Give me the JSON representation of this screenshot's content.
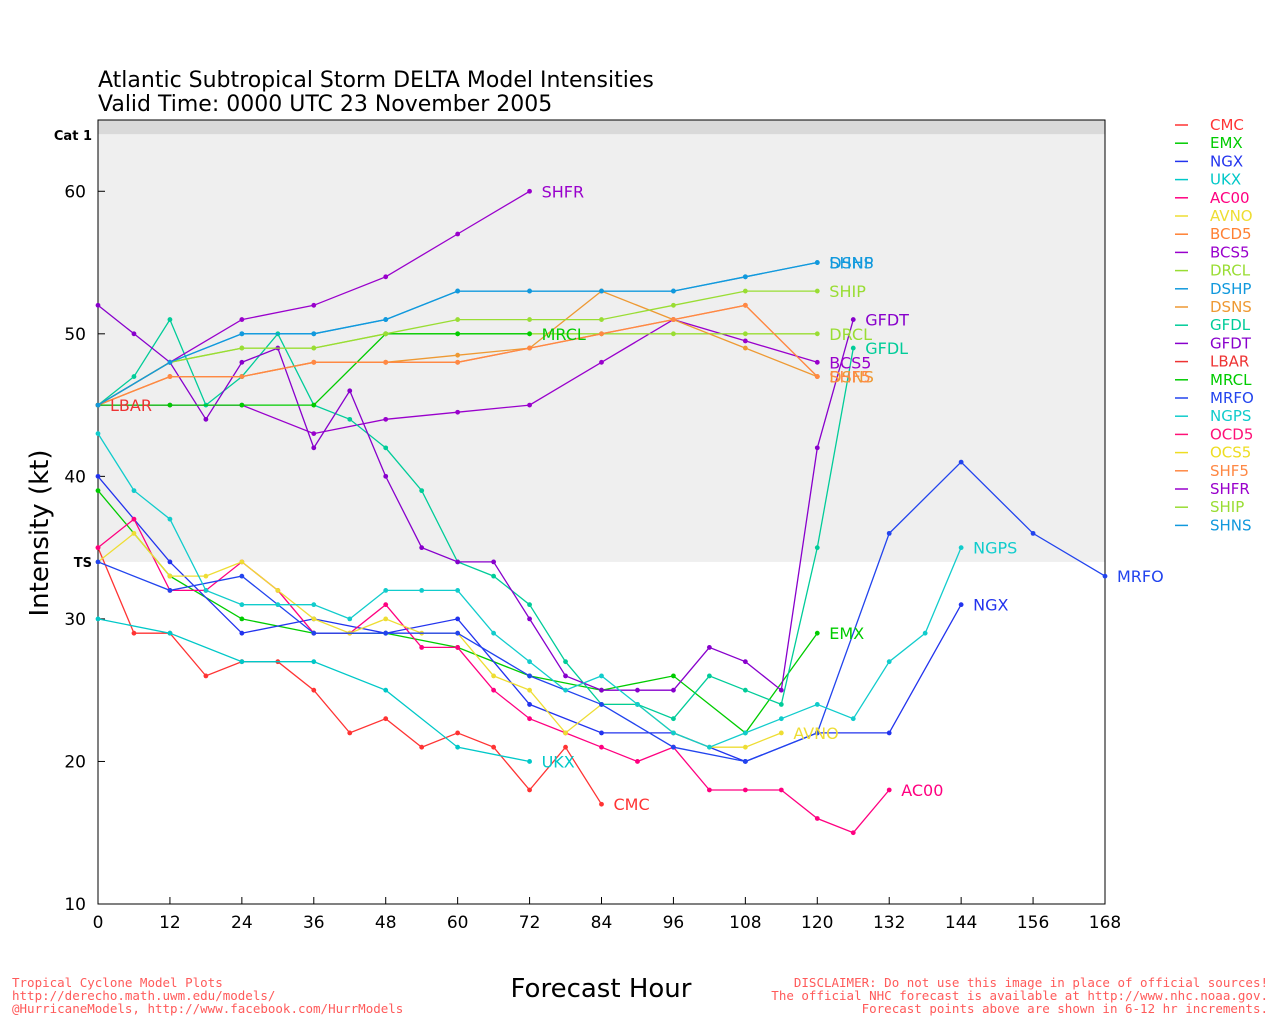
{
  "chart_data": {
    "type": "line",
    "title": "Atlantic Subtropical Storm DELTA Model Intensities",
    "subtitle": "Valid Time: 0000 UTC 23 November 2005",
    "xlabel": "Forecast Hour",
    "ylabel": "Intensity (kt)",
    "xlim": [
      0,
      168
    ],
    "ylim": [
      10,
      65
    ],
    "xticks": [
      "0",
      "12",
      "24",
      "36",
      "48",
      "60",
      "72",
      "84",
      "96",
      "108",
      "120",
      "132",
      "144",
      "156",
      "168"
    ],
    "yticks": [
      "10",
      "20",
      "30",
      "40",
      "50",
      "60"
    ],
    "grid": false,
    "legend_position": "right",
    "bands": [
      {
        "label": "TS",
        "from": 34,
        "to": 64,
        "color": "#efefef"
      },
      {
        "label": "Cat 1",
        "from": 64,
        "to": 65,
        "color": "#d9d9d9"
      }
    ],
    "series": [
      {
        "name": "CMC",
        "color": "#ff3333",
        "end_label": "CMC",
        "points": [
          [
            0,
            35
          ],
          [
            6,
            29
          ],
          [
            12,
            29
          ],
          [
            18,
            26
          ],
          [
            24,
            27
          ],
          [
            30,
            27
          ],
          [
            36,
            25
          ],
          [
            42,
            22
          ],
          [
            48,
            23
          ],
          [
            54,
            21
          ],
          [
            60,
            22
          ],
          [
            66,
            21
          ],
          [
            72,
            18
          ],
          [
            78,
            21
          ],
          [
            84,
            17
          ]
        ]
      },
      {
        "name": "EMX",
        "color": "#00cc00",
        "end_label": "EMX",
        "points": [
          [
            0,
            39
          ],
          [
            12,
            33
          ],
          [
            24,
            30
          ],
          [
            36,
            29
          ],
          [
            48,
            29
          ],
          [
            60,
            28
          ],
          [
            72,
            26
          ],
          [
            84,
            25
          ],
          [
            96,
            26
          ],
          [
            108,
            22
          ],
          [
            120,
            29
          ]
        ]
      },
      {
        "name": "NGX",
        "color": "#2233ee",
        "end_label": "NGX",
        "points": [
          [
            0,
            40
          ],
          [
            12,
            34
          ],
          [
            24,
            29
          ],
          [
            36,
            30
          ],
          [
            48,
            29
          ],
          [
            60,
            30
          ],
          [
            72,
            24
          ],
          [
            84,
            22
          ],
          [
            96,
            22
          ],
          [
            108,
            20
          ],
          [
            120,
            22
          ],
          [
            132,
            22
          ],
          [
            144,
            31
          ]
        ]
      },
      {
        "name": "UKX",
        "color": "#00c8c8",
        "end_label": "UKX",
        "points": [
          [
            0,
            30
          ],
          [
            12,
            29
          ],
          [
            24,
            27
          ],
          [
            36,
            27
          ],
          [
            48,
            25
          ],
          [
            60,
            21
          ],
          [
            72,
            20
          ]
        ]
      },
      {
        "name": "AC00",
        "color": "#ff0080",
        "end_label": "AC00",
        "points": [
          [
            0,
            35
          ],
          [
            6,
            37
          ],
          [
            12,
            32
          ],
          [
            18,
            32
          ],
          [
            24,
            34
          ],
          [
            30,
            32
          ],
          [
            36,
            29
          ],
          [
            42,
            29
          ],
          [
            48,
            31
          ],
          [
            54,
            28
          ],
          [
            60,
            28
          ],
          [
            66,
            25
          ],
          [
            72,
            23
          ],
          [
            78,
            22
          ],
          [
            84,
            21
          ],
          [
            90,
            20
          ],
          [
            96,
            21
          ],
          [
            102,
            18
          ],
          [
            108,
            18
          ],
          [
            114,
            18
          ],
          [
            120,
            16
          ],
          [
            126,
            15
          ],
          [
            132,
            18
          ]
        ]
      },
      {
        "name": "AVNO",
        "color": "#eedd33",
        "end_label": "AVNO",
        "points": [
          [
            0,
            34
          ],
          [
            6,
            36
          ],
          [
            12,
            33
          ],
          [
            18,
            33
          ],
          [
            24,
            34
          ],
          [
            30,
            32
          ],
          [
            36,
            30
          ],
          [
            42,
            29
          ],
          [
            48,
            30
          ],
          [
            54,
            29
          ],
          [
            60,
            29
          ],
          [
            66,
            26
          ],
          [
            72,
            25
          ],
          [
            78,
            22
          ],
          [
            84,
            24
          ],
          [
            90,
            24
          ],
          [
            96,
            22
          ],
          [
            102,
            21
          ],
          [
            108,
            21
          ],
          [
            114,
            22
          ]
        ]
      },
      {
        "name": "BCD5",
        "color": "#ff8033",
        "end_label": "",
        "points": [
          [
            0,
            45
          ],
          [
            12,
            47
          ],
          [
            24,
            47
          ],
          [
            36,
            48
          ],
          [
            48,
            48
          ],
          [
            60,
            48
          ],
          [
            72,
            49
          ],
          [
            84,
            50
          ],
          [
            96,
            51
          ],
          [
            108,
            52
          ],
          [
            120,
            47
          ]
        ]
      },
      {
        "name": "BCS5",
        "color": "#9900cc",
        "end_label": "BCS5",
        "points": [
          [
            0,
            45
          ],
          [
            12,
            45
          ],
          [
            24,
            45
          ],
          [
            36,
            43
          ],
          [
            48,
            44
          ],
          [
            60,
            44.5
          ],
          [
            72,
            45
          ],
          [
            84,
            48
          ],
          [
            96,
            51
          ],
          [
            108,
            49.5
          ],
          [
            120,
            48
          ]
        ]
      },
      {
        "name": "DRCL",
        "color": "#99dd33",
        "end_label": "DRCL",
        "points": [
          [
            0,
            45
          ],
          [
            12,
            48
          ],
          [
            24,
            49
          ],
          [
            36,
            49
          ],
          [
            48,
            50
          ],
          [
            60,
            50
          ],
          [
            72,
            50
          ],
          [
            84,
            50
          ],
          [
            96,
            50
          ],
          [
            108,
            50
          ],
          [
            120,
            50
          ]
        ]
      },
      {
        "name": "DSHP",
        "color": "#1199dd",
        "end_label": "DSHP",
        "points": [
          [
            0,
            45
          ],
          [
            12,
            48
          ],
          [
            24,
            50
          ],
          [
            36,
            50
          ],
          [
            48,
            51
          ],
          [
            60,
            53
          ],
          [
            72,
            53
          ],
          [
            84,
            53
          ],
          [
            96,
            53
          ],
          [
            108,
            54
          ],
          [
            120,
            55
          ]
        ]
      },
      {
        "name": "DSNS",
        "color": "#ee9933",
        "end_label": "DSNS",
        "points": [
          [
            0,
            45
          ],
          [
            12,
            47
          ],
          [
            24,
            47
          ],
          [
            36,
            48
          ],
          [
            48,
            48
          ],
          [
            60,
            48.5
          ],
          [
            72,
            49
          ],
          [
            84,
            53
          ],
          [
            96,
            51
          ],
          [
            108,
            49
          ],
          [
            120,
            47
          ]
        ]
      },
      {
        "name": "GFDL",
        "color": "#00cc99",
        "end_label": "GFDL",
        "points": [
          [
            0,
            45
          ],
          [
            6,
            47
          ],
          [
            12,
            51
          ],
          [
            18,
            45
          ],
          [
            24,
            47
          ],
          [
            30,
            50
          ],
          [
            36,
            45
          ],
          [
            42,
            44
          ],
          [
            48,
            42
          ],
          [
            54,
            39
          ],
          [
            60,
            34
          ],
          [
            66,
            33
          ],
          [
            72,
            31
          ],
          [
            78,
            27
          ],
          [
            84,
            24
          ],
          [
            90,
            24
          ],
          [
            96,
            23
          ],
          [
            102,
            26
          ],
          [
            108,
            25
          ],
          [
            114,
            24
          ],
          [
            120,
            35
          ],
          [
            126,
            49
          ]
        ]
      },
      {
        "name": "GFDT",
        "color": "#8800cc",
        "end_label": "GFDT",
        "points": [
          [
            0,
            52
          ],
          [
            6,
            50
          ],
          [
            12,
            48
          ],
          [
            18,
            44
          ],
          [
            24,
            48
          ],
          [
            30,
            49
          ],
          [
            36,
            42
          ],
          [
            42,
            46
          ],
          [
            48,
            40
          ],
          [
            54,
            35
          ],
          [
            60,
            34
          ],
          [
            66,
            34
          ],
          [
            72,
            30
          ],
          [
            78,
            26
          ],
          [
            84,
            25
          ],
          [
            90,
            25
          ],
          [
            96,
            25
          ],
          [
            102,
            28
          ],
          [
            108,
            27
          ],
          [
            114,
            25
          ],
          [
            120,
            42
          ],
          [
            126,
            51
          ]
        ]
      },
      {
        "name": "LBAR",
        "color": "#ee3333",
        "end_label": "LBAR",
        "points": [
          [
            0,
            45
          ]
        ]
      },
      {
        "name": "MRCL",
        "color": "#00cc00",
        "end_label": "MRCL",
        "points": [
          [
            0,
            45
          ],
          [
            12,
            45
          ],
          [
            24,
            45
          ],
          [
            36,
            45
          ],
          [
            48,
            50
          ],
          [
            60,
            50
          ],
          [
            72,
            50
          ]
        ]
      },
      {
        "name": "MRFO",
        "color": "#2244ee",
        "end_label": "MRFO",
        "points": [
          [
            0,
            34
          ],
          [
            12,
            32
          ],
          [
            24,
            33
          ],
          [
            36,
            29
          ],
          [
            48,
            29
          ],
          [
            60,
            29
          ],
          [
            72,
            26
          ],
          [
            84,
            24
          ],
          [
            96,
            21
          ],
          [
            108,
            20
          ],
          [
            120,
            22
          ],
          [
            132,
            36
          ],
          [
            144,
            41
          ],
          [
            156,
            36
          ],
          [
            168,
            33
          ]
        ]
      },
      {
        "name": "NGPS",
        "color": "#11cccc",
        "end_label": "NGPS",
        "points": [
          [
            0,
            43
          ],
          [
            6,
            39
          ],
          [
            12,
            37
          ],
          [
            18,
            32
          ],
          [
            24,
            31
          ],
          [
            30,
            31
          ],
          [
            36,
            31
          ],
          [
            42,
            30
          ],
          [
            48,
            32
          ],
          [
            54,
            32
          ],
          [
            60,
            32
          ],
          [
            66,
            29
          ],
          [
            72,
            27
          ],
          [
            78,
            25
          ],
          [
            84,
            26
          ],
          [
            90,
            24
          ],
          [
            96,
            22
          ],
          [
            102,
            21
          ],
          [
            108,
            22
          ],
          [
            114,
            23
          ],
          [
            120,
            24
          ],
          [
            126,
            23
          ],
          [
            132,
            27
          ],
          [
            138,
            29
          ],
          [
            144,
            35
          ]
        ]
      },
      {
        "name": "OCD5",
        "color": "#ff1177",
        "end_label": "",
        "points": []
      },
      {
        "name": "OCS5",
        "color": "#eedd22",
        "end_label": "",
        "points": []
      },
      {
        "name": "SHF5",
        "color": "#ff8844",
        "end_label": "SHF5",
        "points": [
          [
            0,
            45
          ],
          [
            12,
            47
          ],
          [
            24,
            47
          ],
          [
            36,
            48
          ],
          [
            48,
            48
          ],
          [
            60,
            48
          ],
          [
            72,
            49
          ],
          [
            84,
            50
          ],
          [
            96,
            51
          ],
          [
            108,
            52
          ],
          [
            120,
            47
          ]
        ]
      },
      {
        "name": "SHFR",
        "color": "#9900cc",
        "end_label": "SHFR",
        "points": [
          [
            0,
            45
          ],
          [
            12,
            48
          ],
          [
            24,
            51
          ],
          [
            36,
            52
          ],
          [
            48,
            54
          ],
          [
            60,
            57
          ],
          [
            72,
            60
          ]
        ]
      },
      {
        "name": "SHIP",
        "color": "#99dd33",
        "end_label": "SHIP",
        "points": [
          [
            0,
            45
          ],
          [
            12,
            48
          ],
          [
            24,
            49
          ],
          [
            36,
            49
          ],
          [
            48,
            50
          ],
          [
            60,
            51
          ],
          [
            72,
            51
          ],
          [
            84,
            51
          ],
          [
            96,
            52
          ],
          [
            108,
            53
          ],
          [
            120,
            53
          ]
        ]
      },
      {
        "name": "SHNS",
        "color": "#1199dd",
        "end_label": "SHNS",
        "points": [
          [
            0,
            45
          ],
          [
            12,
            48
          ],
          [
            24,
            50
          ],
          [
            36,
            50
          ],
          [
            48,
            51
          ],
          [
            60,
            53
          ],
          [
            72,
            53
          ],
          [
            84,
            53
          ],
          [
            96,
            53
          ],
          [
            108,
            54
          ],
          [
            120,
            55
          ]
        ]
      }
    ]
  },
  "footer": {
    "left_line1": "Tropical Cyclone Model Plots",
    "left_line2": "http://derecho.math.uwm.edu/models/",
    "left_line3": "@HurricaneModels, http://www.facebook.com/HurrModels",
    "right_line1": "DISCLAIMER: Do not use this image in place of official sources!",
    "right_line2": "The official NHC forecast is available at http://www.nhc.noaa.gov.",
    "right_line3": "Forecast points above are shown in 6-12 hr increments."
  }
}
